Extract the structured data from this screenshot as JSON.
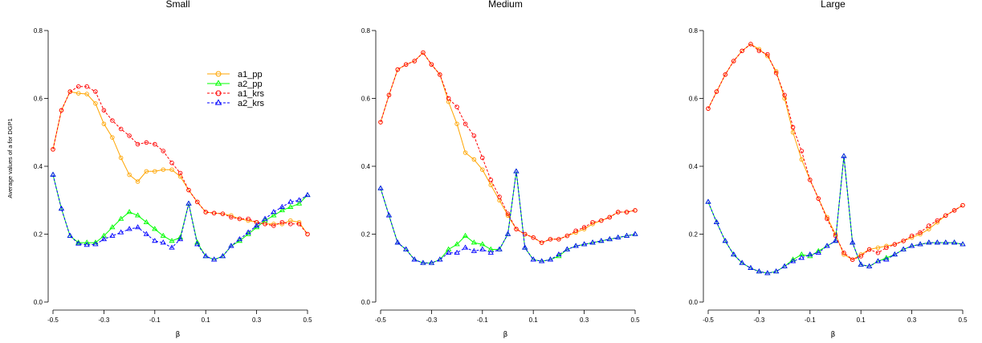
{
  "chart_data": [
    {
      "type": "line",
      "title": "Small",
      "xlabel": "β",
      "ylabel": "Average values of a for DGP1",
      "xlim": [
        -0.5,
        0.5
      ],
      "ylim": [
        0.0,
        0.8
      ],
      "xticks": [
        "-0.5",
        "-0.3",
        "-0.1",
        "0.1",
        "0.3",
        "0.5"
      ],
      "yticks": [
        "0.0",
        "0.2",
        "0.4",
        "0.6",
        "0.8"
      ],
      "legend": "top-right",
      "x": [
        -0.5,
        -0.467,
        -0.433,
        -0.4,
        -0.367,
        -0.333,
        -0.3,
        -0.267,
        -0.233,
        -0.2,
        -0.167,
        -0.133,
        -0.1,
        -0.067,
        -0.033,
        0.0,
        0.033,
        0.067,
        0.1,
        0.133,
        0.167,
        0.2,
        0.233,
        0.267,
        0.3,
        0.333,
        0.367,
        0.4,
        0.433,
        0.467,
        0.5
      ],
      "series": [
        {
          "name": "a1_pp",
          "color": "#ffa500",
          "style": "solid",
          "marker": "circle",
          "values": [
            0.45,
            0.565,
            0.62,
            0.615,
            0.613,
            0.585,
            0.525,
            0.485,
            0.425,
            0.375,
            0.355,
            0.385,
            0.385,
            0.39,
            0.39,
            0.37,
            0.33,
            0.295,
            0.265,
            0.262,
            0.26,
            0.255,
            0.245,
            0.24,
            0.235,
            0.23,
            0.23,
            0.23,
            0.24,
            0.235,
            0.2
          ]
        },
        {
          "name": "a2_pp",
          "color": "#00ff00",
          "style": "solid",
          "marker": "triangle",
          "values": [
            0.375,
            0.275,
            0.195,
            0.175,
            0.175,
            0.175,
            0.195,
            0.22,
            0.245,
            0.265,
            0.255,
            0.235,
            0.215,
            0.195,
            0.18,
            0.19,
            0.29,
            0.175,
            0.135,
            0.125,
            0.135,
            0.165,
            0.18,
            0.2,
            0.22,
            0.24,
            0.255,
            0.27,
            0.28,
            0.29,
            0.315
          ]
        },
        {
          "name": "a1_krs",
          "color": "#ff0000",
          "style": "dashed",
          "marker": "circle",
          "values": [
            0.45,
            0.565,
            0.62,
            0.635,
            0.635,
            0.62,
            0.565,
            0.535,
            0.51,
            0.49,
            0.465,
            0.47,
            0.465,
            0.445,
            0.41,
            0.38,
            0.33,
            0.295,
            0.265,
            0.262,
            0.26,
            0.25,
            0.245,
            0.245,
            0.235,
            0.23,
            0.225,
            0.235,
            0.23,
            0.23,
            0.2
          ]
        },
        {
          "name": "a2_krs",
          "color": "#0000ff",
          "style": "dashed",
          "marker": "triangle",
          "values": [
            0.375,
            0.275,
            0.195,
            0.172,
            0.168,
            0.17,
            0.185,
            0.195,
            0.205,
            0.215,
            0.22,
            0.2,
            0.18,
            0.175,
            0.16,
            0.185,
            0.29,
            0.17,
            0.135,
            0.125,
            0.135,
            0.165,
            0.185,
            0.205,
            0.225,
            0.245,
            0.265,
            0.28,
            0.295,
            0.3,
            0.315
          ]
        }
      ]
    },
    {
      "type": "line",
      "title": "Medium",
      "xlabel": "β",
      "ylabel": "",
      "xlim": [
        -0.5,
        0.5
      ],
      "ylim": [
        0.0,
        0.8
      ],
      "xticks": [
        "-0.5",
        "-0.3",
        "-0.1",
        "0.1",
        "0.3",
        "0.5"
      ],
      "yticks": [
        "0.0",
        "0.2",
        "0.4",
        "0.6",
        "0.8"
      ],
      "x": [
        -0.5,
        -0.467,
        -0.433,
        -0.4,
        -0.367,
        -0.333,
        -0.3,
        -0.267,
        -0.233,
        -0.2,
        -0.167,
        -0.133,
        -0.1,
        -0.067,
        -0.033,
        0.0,
        0.033,
        0.067,
        0.1,
        0.133,
        0.167,
        0.2,
        0.233,
        0.267,
        0.3,
        0.333,
        0.367,
        0.4,
        0.433,
        0.467,
        0.5
      ],
      "series": [
        {
          "name": "a1_pp",
          "color": "#ffa500",
          "style": "solid",
          "marker": "circle",
          "values": [
            0.53,
            0.61,
            0.685,
            0.7,
            0.71,
            0.735,
            0.7,
            0.67,
            0.59,
            0.525,
            0.44,
            0.42,
            0.39,
            0.345,
            0.3,
            0.255,
            0.215,
            0.2,
            0.19,
            0.175,
            0.185,
            0.185,
            0.195,
            0.205,
            0.215,
            0.23,
            0.24,
            0.25,
            0.265,
            0.265,
            0.27
          ]
        },
        {
          "name": "a2_pp",
          "color": "#00ff00",
          "style": "solid",
          "marker": "triangle",
          "values": [
            0.335,
            0.255,
            0.175,
            0.155,
            0.125,
            0.115,
            0.115,
            0.125,
            0.155,
            0.17,
            0.195,
            0.175,
            0.17,
            0.155,
            0.155,
            0.2,
            0.385,
            0.16,
            0.125,
            0.12,
            0.125,
            0.135,
            0.155,
            0.165,
            0.17,
            0.175,
            0.18,
            0.185,
            0.19,
            0.195,
            0.2
          ]
        },
        {
          "name": "a1_krs",
          "color": "#ff0000",
          "style": "dashed",
          "marker": "circle",
          "values": [
            0.53,
            0.61,
            0.685,
            0.7,
            0.71,
            0.735,
            0.7,
            0.67,
            0.6,
            0.575,
            0.525,
            0.49,
            0.425,
            0.36,
            0.31,
            0.26,
            0.215,
            0.2,
            0.19,
            0.175,
            0.185,
            0.185,
            0.195,
            0.21,
            0.22,
            0.235,
            0.24,
            0.25,
            0.265,
            0.265,
            0.27
          ]
        },
        {
          "name": "a2_krs",
          "color": "#0000ff",
          "style": "dashed",
          "marker": "triangle",
          "values": [
            0.335,
            0.255,
            0.175,
            0.155,
            0.125,
            0.115,
            0.115,
            0.125,
            0.145,
            0.145,
            0.16,
            0.15,
            0.155,
            0.145,
            0.155,
            0.2,
            0.385,
            0.16,
            0.125,
            0.12,
            0.125,
            0.14,
            0.155,
            0.165,
            0.17,
            0.175,
            0.18,
            0.185,
            0.19,
            0.195,
            0.2
          ]
        }
      ]
    },
    {
      "type": "line",
      "title": "Large",
      "xlabel": "β",
      "ylabel": "",
      "xlim": [
        -0.5,
        0.5
      ],
      "ylim": [
        0.0,
        0.8
      ],
      "xticks": [
        "-0.5",
        "-0.3",
        "-0.1",
        "0.1",
        "0.3",
        "0.5"
      ],
      "yticks": [
        "0.0",
        "0.2",
        "0.4",
        "0.6",
        "0.8"
      ],
      "x": [
        -0.5,
        -0.467,
        -0.433,
        -0.4,
        -0.367,
        -0.333,
        -0.3,
        -0.267,
        -0.233,
        -0.2,
        -0.167,
        -0.133,
        -0.1,
        -0.067,
        -0.033,
        0.0,
        0.033,
        0.067,
        0.1,
        0.133,
        0.167,
        0.2,
        0.233,
        0.267,
        0.3,
        0.333,
        0.367,
        0.4,
        0.433,
        0.467,
        0.5
      ],
      "series": [
        {
          "name": "a1_pp",
          "color": "#ffa500",
          "style": "solid",
          "marker": "circle",
          "values": [
            0.57,
            0.62,
            0.67,
            0.71,
            0.74,
            0.76,
            0.745,
            0.725,
            0.68,
            0.6,
            0.5,
            0.42,
            0.36,
            0.305,
            0.25,
            0.2,
            0.14,
            0.125,
            0.14,
            0.155,
            0.16,
            0.165,
            0.17,
            0.18,
            0.19,
            0.2,
            0.215,
            0.235,
            0.255,
            0.27,
            0.285
          ]
        },
        {
          "name": "a2_pp",
          "color": "#00ff00",
          "style": "solid",
          "marker": "triangle",
          "values": [
            0.295,
            0.235,
            0.18,
            0.14,
            0.115,
            0.1,
            0.09,
            0.085,
            0.09,
            0.105,
            0.125,
            0.14,
            0.135,
            0.15,
            0.165,
            0.18,
            0.43,
            0.175,
            0.11,
            0.105,
            0.12,
            0.13,
            0.14,
            0.155,
            0.165,
            0.17,
            0.175,
            0.175,
            0.175,
            0.175,
            0.17
          ]
        },
        {
          "name": "a1_krs",
          "color": "#ff0000",
          "style": "dashed",
          "marker": "circle",
          "values": [
            0.57,
            0.62,
            0.67,
            0.71,
            0.74,
            0.76,
            0.74,
            0.73,
            0.675,
            0.61,
            0.515,
            0.445,
            0.36,
            0.305,
            0.245,
            0.195,
            0.145,
            0.125,
            0.135,
            0.155,
            0.145,
            0.16,
            0.17,
            0.18,
            0.195,
            0.205,
            0.225,
            0.24,
            0.255,
            0.27,
            0.285
          ]
        },
        {
          "name": "a2_krs",
          "color": "#0000ff",
          "style": "dashed",
          "marker": "triangle",
          "values": [
            0.295,
            0.235,
            0.18,
            0.14,
            0.115,
            0.1,
            0.09,
            0.085,
            0.09,
            0.105,
            0.12,
            0.13,
            0.14,
            0.145,
            0.165,
            0.18,
            0.43,
            0.175,
            0.11,
            0.105,
            0.12,
            0.125,
            0.14,
            0.155,
            0.165,
            0.17,
            0.175,
            0.175,
            0.175,
            0.175,
            0.17
          ]
        }
      ]
    }
  ]
}
